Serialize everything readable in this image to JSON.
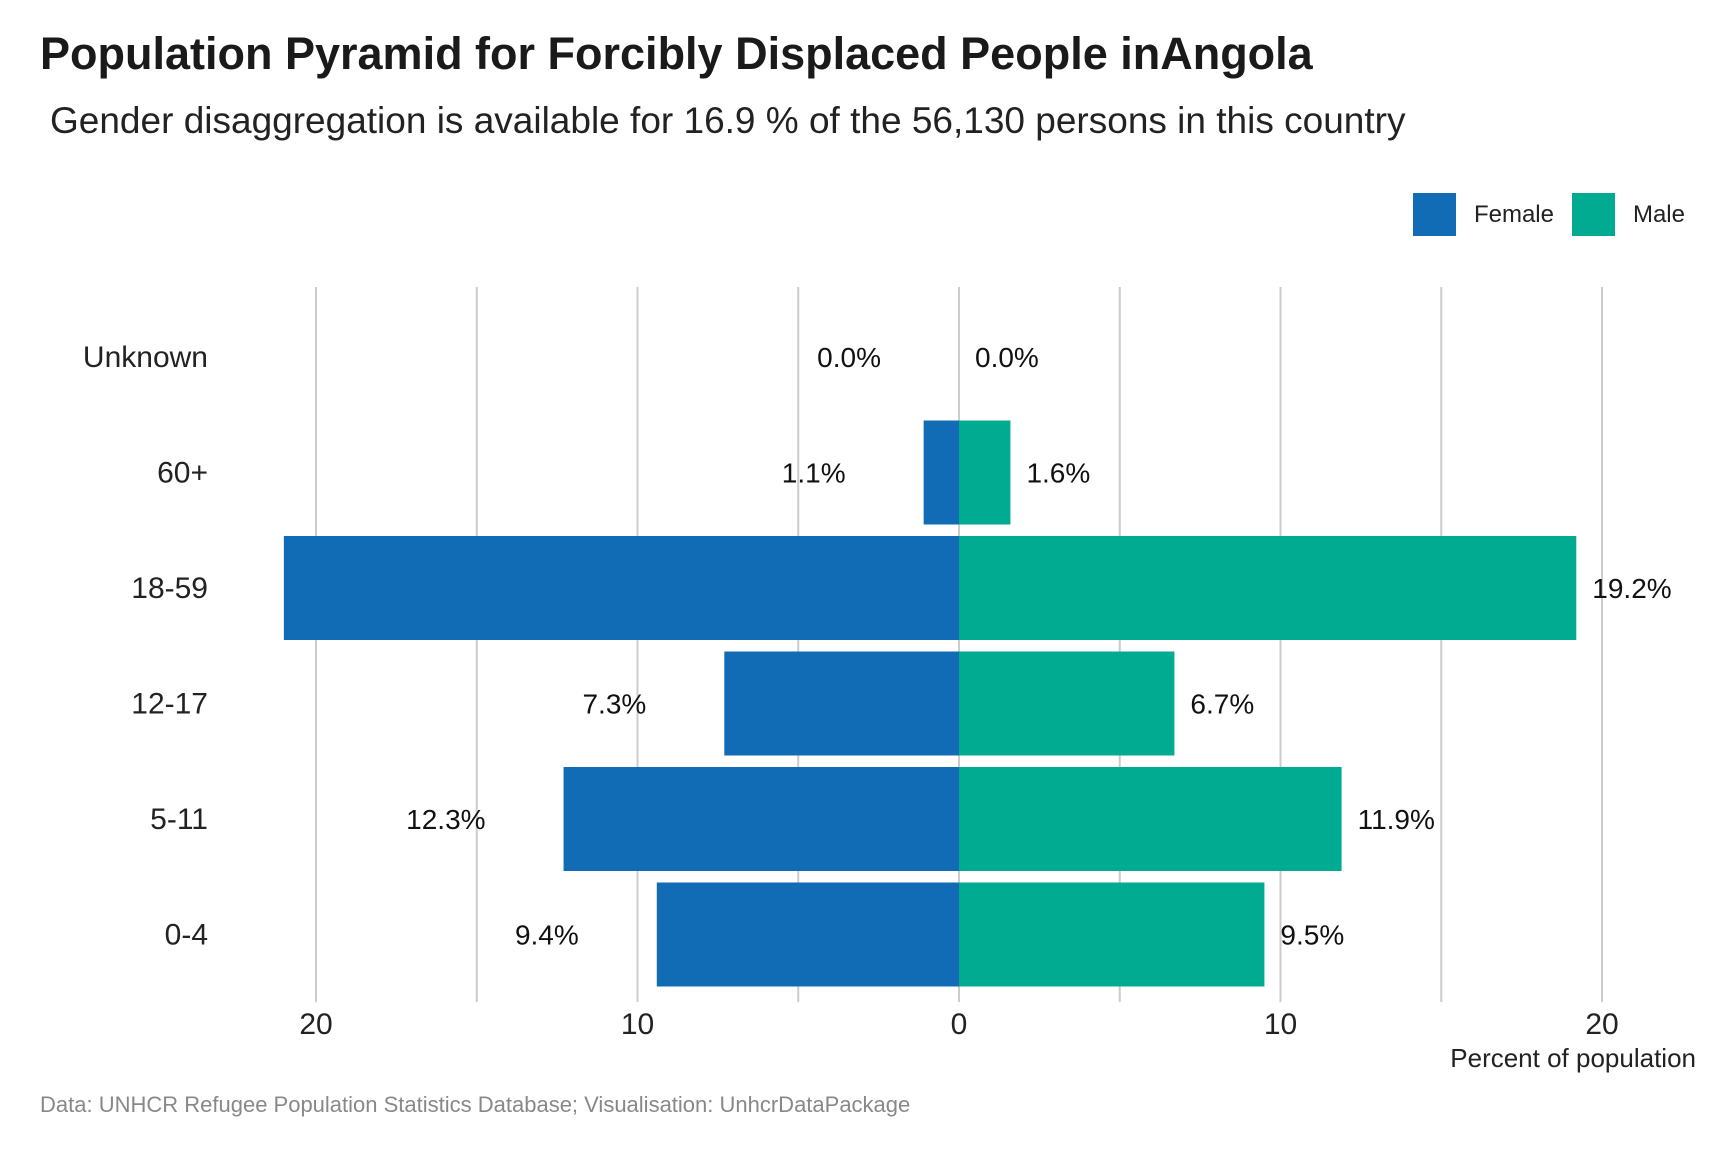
{
  "title": "Population Pyramid for Forcibly Displaced People inAngola",
  "subtitle": "Gender disaggregation is available for 16.9 % of the 56,130 persons in this country",
  "caption": "Data: UNHCR Refugee Population Statistics Database; Visualisation: UnhcrDataPackage",
  "colors": {
    "female": "#126bb5",
    "male": "#00ab92",
    "grid": "#cccccc"
  },
  "chart_data": {
    "type": "bar",
    "orientation": "horizontal-pyramid",
    "categories": [
      "Unknown",
      "60+",
      "18-59",
      "12-17",
      "5-11",
      "0-4"
    ],
    "series": [
      {
        "name": "Female",
        "values": [
          0.0,
          1.1,
          21.0,
          7.3,
          12.3,
          9.4
        ],
        "labels": [
          "0.0%",
          "1.1%",
          "",
          "7.3%",
          "12.3%",
          "9.4%"
        ]
      },
      {
        "name": "Male",
        "values": [
          0.0,
          1.6,
          19.2,
          6.7,
          11.9,
          9.5
        ],
        "labels": [
          "0.0%",
          "1.6%",
          "19.2%",
          "6.7%",
          "11.9%",
          "9.5%"
        ]
      }
    ],
    "xlim": [
      -20,
      20
    ],
    "ticks": [
      -20,
      -10,
      0,
      10,
      20
    ],
    "tick_labels": [
      "20",
      "10",
      "0",
      "10",
      "20"
    ],
    "xlabel": "Percent of population",
    "legend_position": "top-right",
    "grid": true
  }
}
